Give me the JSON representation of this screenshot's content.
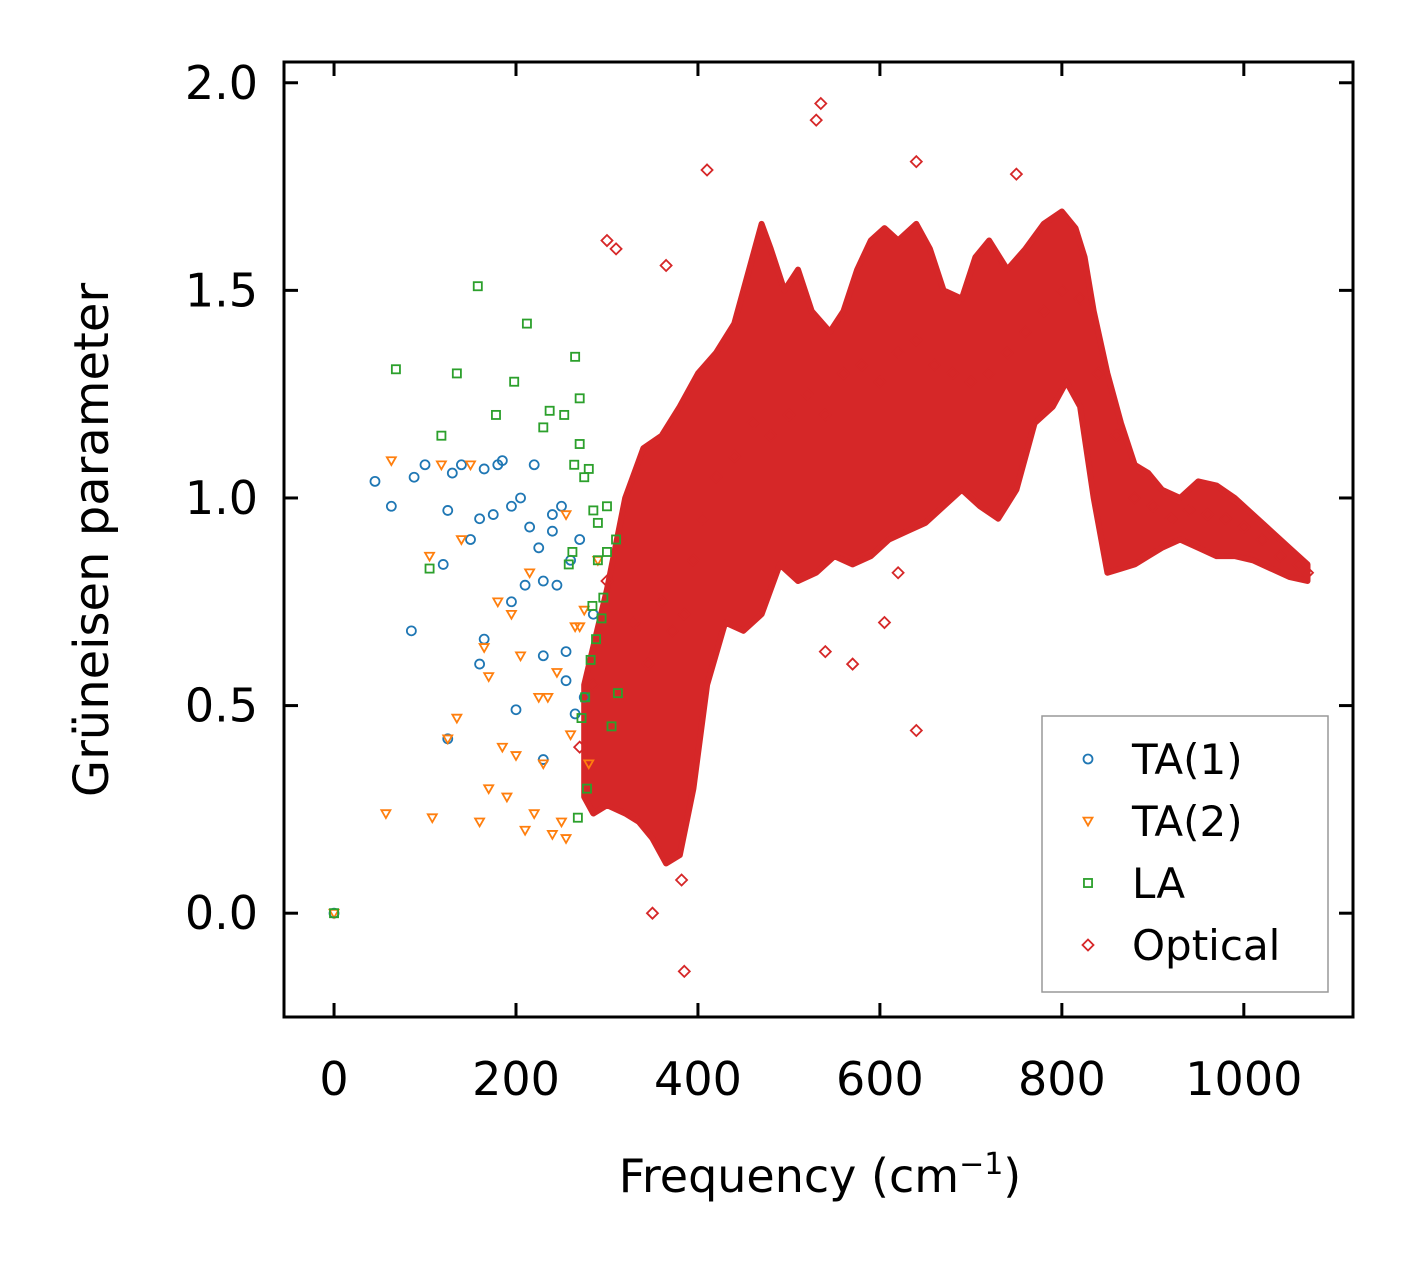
{
  "chart_data": {
    "type": "scatter",
    "title": "",
    "xlabel": "Frequency (cm",
    "xlabel_sup": "−1",
    "xlabel_close": ")",
    "ylabel": "Grüneisen parameter",
    "xlim": [
      -55,
      1120
    ],
    "ylim": [
      -0.25,
      2.05
    ],
    "xticks": [
      0,
      200,
      400,
      600,
      800,
      1000
    ],
    "xtick_labels": [
      "0",
      "200",
      "400",
      "600",
      "800",
      "1000"
    ],
    "yticks": [
      0.0,
      0.5,
      1.0,
      1.5,
      2.0
    ],
    "ytick_labels": [
      "0.0",
      "0.5",
      "1.0",
      "1.5",
      "2.0"
    ],
    "legend_position": "lower-right",
    "series": [
      {
        "name": "TA(1)",
        "marker": "circle",
        "color": "#1f77b4",
        "x": [
          0,
          45,
          63,
          88,
          100,
          125,
          130,
          140,
          160,
          165,
          175,
          185,
          195,
          205,
          215,
          220,
          225,
          230,
          240,
          250,
          260,
          270,
          85,
          125,
          165,
          200,
          230,
          245,
          255,
          265,
          275,
          210,
          180,
          150,
          230,
          160,
          120,
          195,
          255,
          240,
          285
        ],
        "y": [
          0.0,
          1.04,
          0.98,
          1.05,
          1.08,
          0.97,
          1.06,
          1.08,
          0.95,
          1.07,
          0.96,
          1.09,
          0.98,
          1.0,
          0.93,
          1.08,
          0.88,
          0.8,
          0.92,
          0.98,
          0.85,
          0.9,
          0.68,
          0.42,
          0.66,
          0.49,
          0.62,
          0.79,
          0.56,
          0.48,
          0.52,
          0.79,
          1.08,
          0.9,
          0.37,
          0.6,
          0.84,
          0.75,
          0.63,
          0.96,
          0.72
        ]
      },
      {
        "name": "TA(2)",
        "marker": "triangle-down",
        "color": "#ff7f0e",
        "x": [
          0,
          57,
          63,
          108,
          118,
          125,
          135,
          150,
          160,
          170,
          180,
          190,
          200,
          210,
          220,
          230,
          240,
          250,
          260,
          270,
          280,
          105,
          140,
          165,
          185,
          205,
          225,
          245,
          265,
          195,
          215,
          235,
          255,
          275,
          170,
          255,
          290
        ],
        "y": [
          0.0,
          0.24,
          1.09,
          0.23,
          1.08,
          0.42,
          0.47,
          1.08,
          0.22,
          0.3,
          0.75,
          0.28,
          0.38,
          0.2,
          0.24,
          0.36,
          0.19,
          0.22,
          0.43,
          0.69,
          0.36,
          0.86,
          0.9,
          0.64,
          0.4,
          0.62,
          0.52,
          0.58,
          0.69,
          0.72,
          0.82,
          0.52,
          0.96,
          0.73,
          0.57,
          0.18,
          0.85
        ]
      },
      {
        "name": "LA",
        "marker": "square",
        "color": "#2ca02c",
        "x": [
          0,
          68,
          105,
          118,
          135,
          158,
          178,
          198,
          212,
          230,
          237,
          253,
          265,
          270,
          275,
          280,
          285,
          290,
          300,
          310,
          262,
          268,
          278,
          288,
          296,
          305,
          312,
          258,
          264,
          276,
          284,
          294,
          272,
          282,
          290,
          300,
          270
        ],
        "y": [
          0.0,
          1.31,
          0.83,
          1.15,
          1.3,
          1.51,
          1.2,
          1.28,
          1.42,
          1.17,
          1.21,
          1.2,
          1.34,
          1.24,
          1.05,
          1.07,
          0.97,
          0.94,
          0.98,
          0.9,
          0.87,
          0.23,
          0.3,
          0.66,
          0.76,
          0.45,
          0.53,
          0.84,
          1.08,
          0.52,
          0.74,
          0.71,
          0.47,
          0.61,
          0.85,
          0.87,
          1.13
        ]
      },
      {
        "name": "Optical",
        "marker": "diamond",
        "color": "#d62728",
        "x": [
          270,
          285,
          300,
          315,
          330,
          345,
          360,
          372,
          385,
          395,
          405,
          420,
          440,
          460,
          480,
          500,
          520,
          540,
          560,
          580,
          600,
          620,
          640,
          660,
          680,
          700,
          720,
          740,
          760,
          780,
          800,
          820,
          840,
          860,
          880,
          900,
          920,
          940,
          960,
          980,
          1000,
          1020,
          1040,
          1060,
          1070,
          300,
          310,
          365,
          385,
          410,
          535,
          530,
          640,
          605,
          570,
          620,
          640,
          540,
          750,
          350,
          382
        ],
        "y": [
          0.4,
          0.55,
          0.8,
          0.9,
          0.7,
          0.6,
          0.75,
          0.68,
          0.72,
          0.85,
          0.95,
          1.05,
          1.1,
          1.18,
          1.15,
          1.2,
          1.25,
          1.2,
          1.3,
          1.32,
          1.28,
          1.35,
          1.38,
          1.32,
          1.3,
          1.28,
          1.3,
          1.35,
          1.4,
          1.45,
          1.5,
          1.48,
          1.3,
          1.15,
          1.0,
          0.98,
          0.95,
          0.97,
          0.96,
          0.95,
          0.93,
          0.9,
          0.86,
          0.84,
          0.82,
          1.62,
          1.6,
          1.56,
          -0.14,
          1.79,
          1.95,
          1.91,
          1.81,
          0.7,
          0.6,
          0.82,
          0.44,
          0.63,
          1.78,
          0.0,
          0.08
        ]
      }
    ]
  }
}
